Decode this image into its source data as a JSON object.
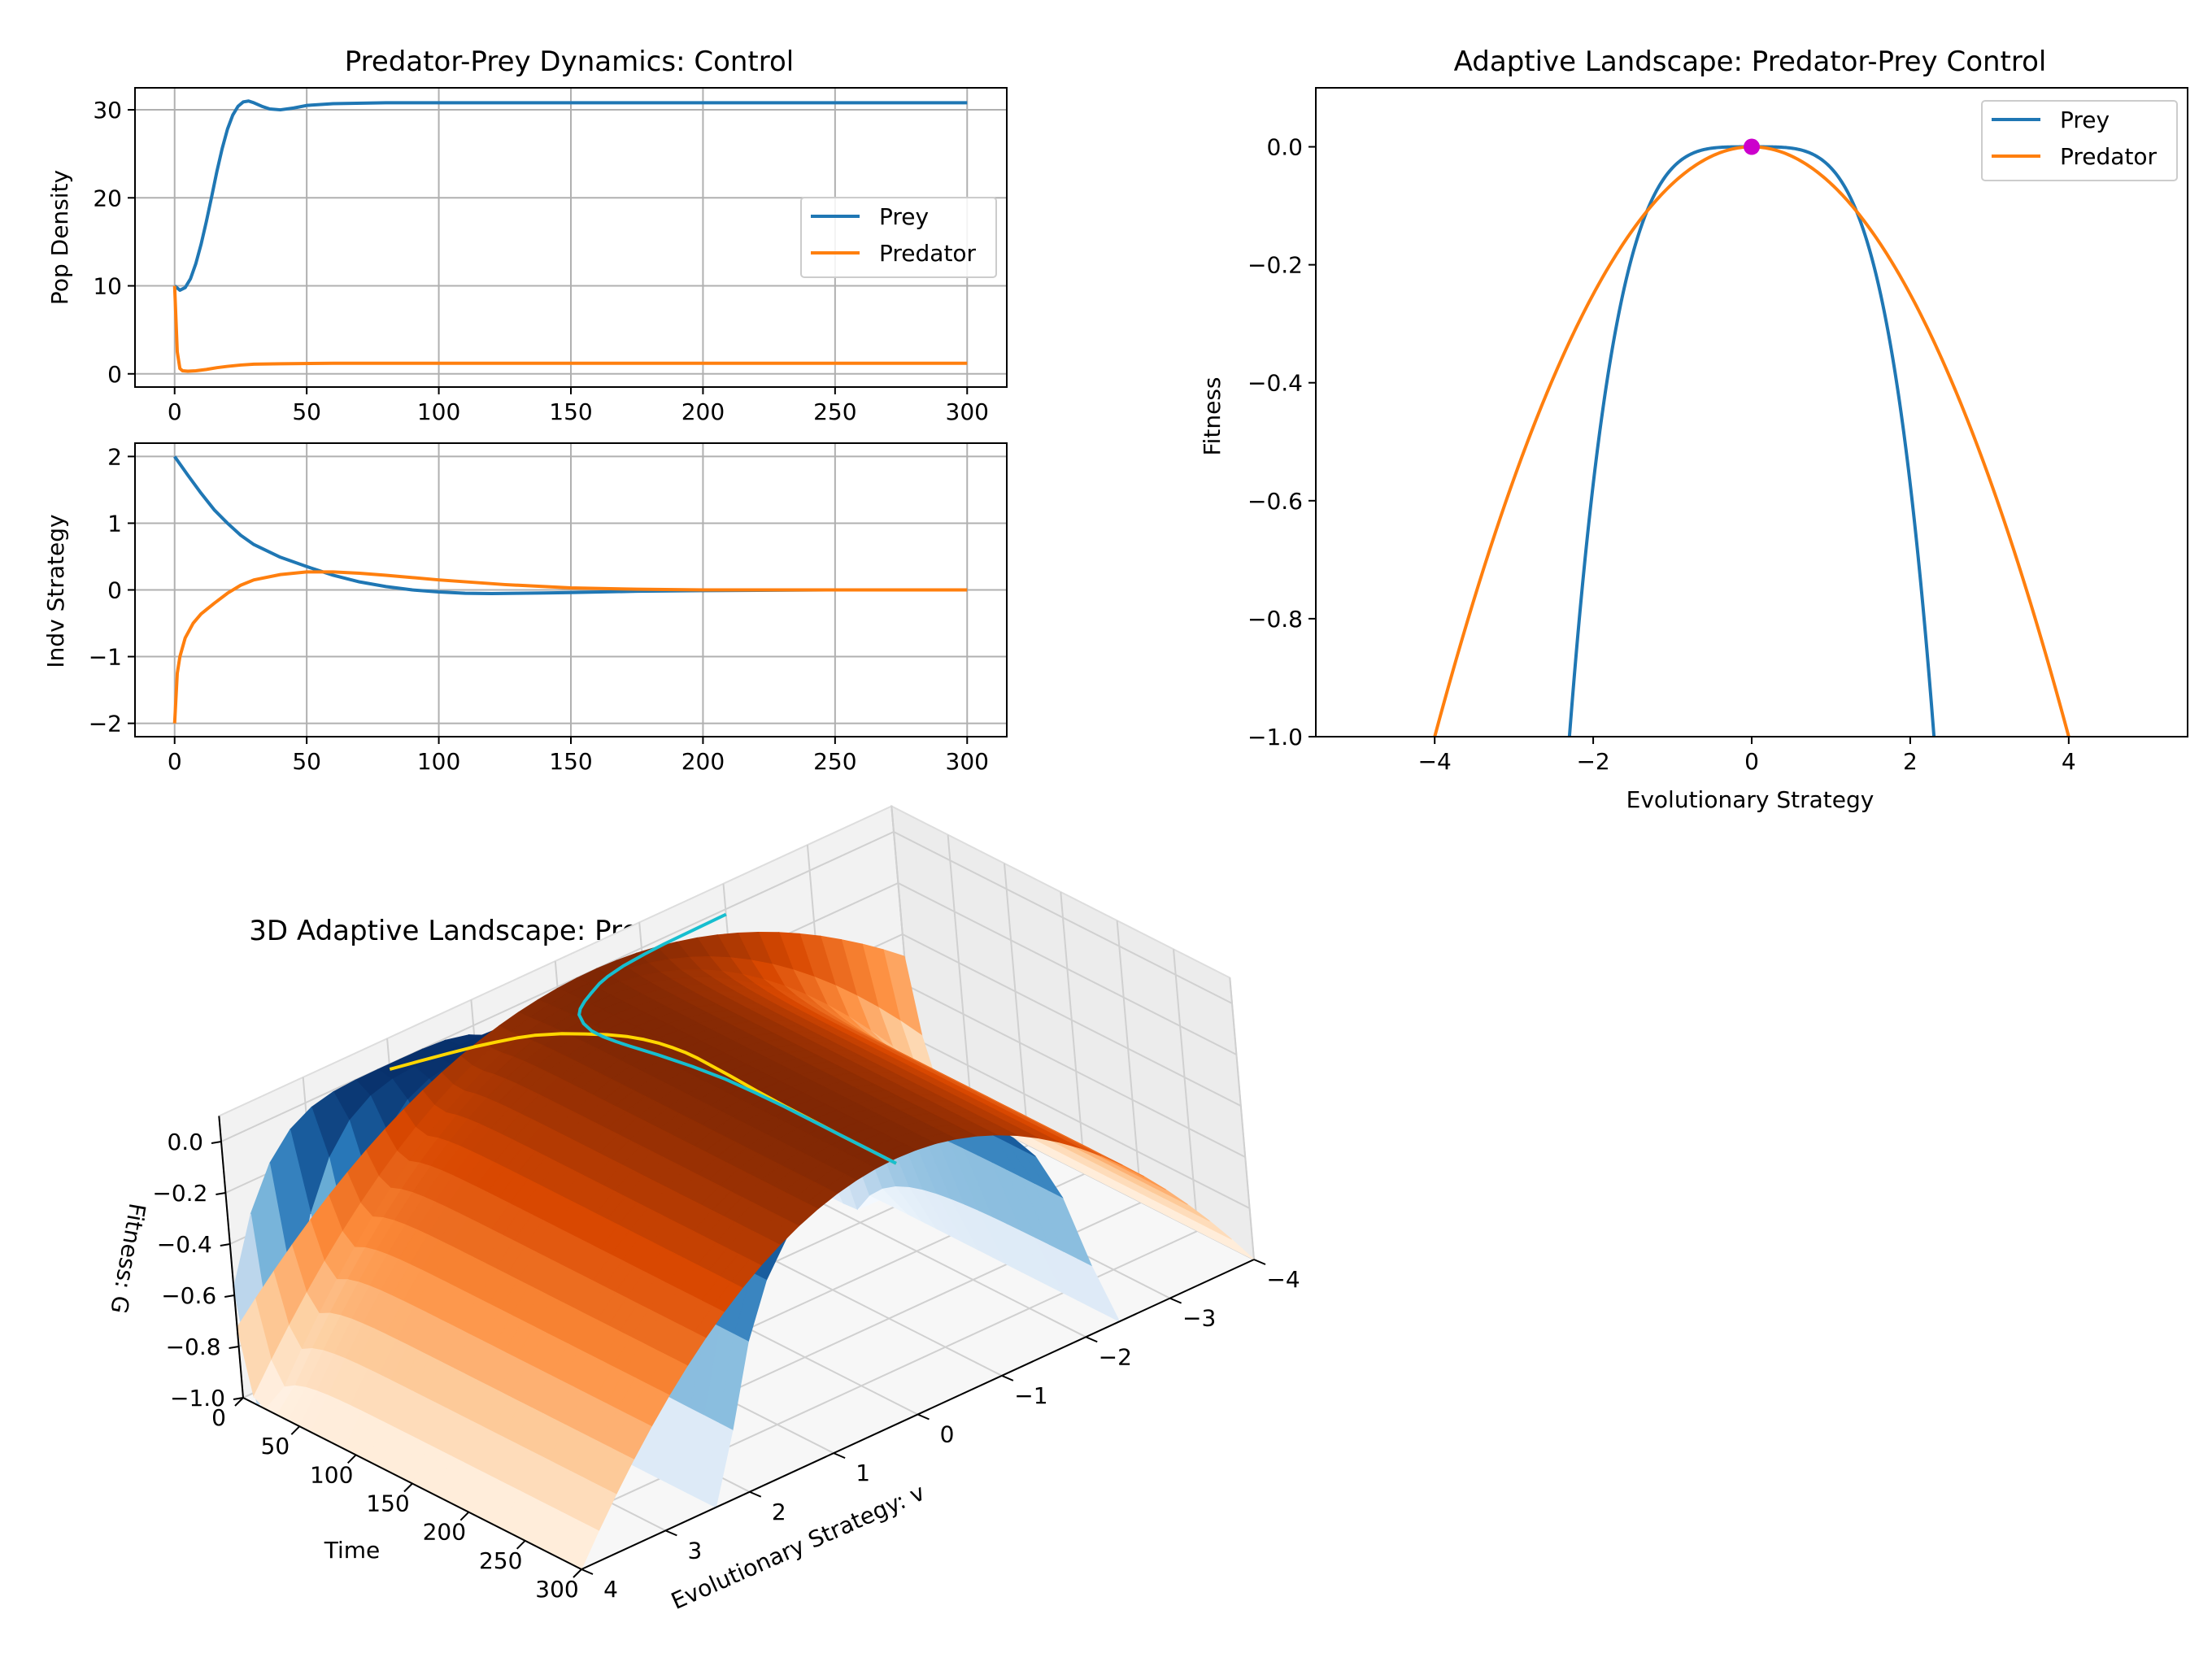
{
  "chart_data": [
    {
      "id": "dynamics-density",
      "type": "line",
      "title": "Predator-Prey Dynamics: Control",
      "xlabel": "",
      "ylabel": "Pop Density",
      "xlim": [
        -15,
        315
      ],
      "ylim": [
        -1.5,
        32.5
      ],
      "xticks": [
        0,
        50,
        100,
        150,
        200,
        250,
        300
      ],
      "yticks": [
        0,
        10,
        20,
        30
      ],
      "grid": true,
      "legend": "center-right",
      "series": [
        {
          "name": "Prey",
          "color": "#1f77b4",
          "x": [
            0,
            2,
            4,
            6,
            8,
            10,
            12,
            14,
            16,
            18,
            20,
            22,
            24,
            26,
            28,
            30,
            33,
            36,
            40,
            45,
            50,
            60,
            80,
            100,
            150,
            200,
            250,
            300
          ],
          "y": [
            10,
            9.5,
            9.8,
            10.8,
            12.5,
            14.7,
            17.3,
            20.1,
            23.0,
            25.6,
            27.8,
            29.4,
            30.4,
            30.9,
            31.0,
            30.8,
            30.4,
            30.1,
            30.0,
            30.2,
            30.5,
            30.7,
            30.8,
            30.8,
            30.8,
            30.8,
            30.8,
            30.8
          ]
        },
        {
          "name": "Predator",
          "color": "#ff7f0e",
          "x": [
            0,
            1,
            2,
            3,
            5,
            8,
            12,
            16,
            20,
            25,
            30,
            40,
            60,
            100,
            150,
            200,
            250,
            300
          ],
          "y": [
            10,
            2.5,
            0.6,
            0.35,
            0.3,
            0.35,
            0.5,
            0.7,
            0.85,
            1.0,
            1.1,
            1.15,
            1.2,
            1.2,
            1.2,
            1.2,
            1.2,
            1.2
          ]
        }
      ]
    },
    {
      "id": "dynamics-strategy",
      "type": "line",
      "title": "",
      "xlabel": "",
      "ylabel": "Indv Strategy",
      "xlim": [
        -15,
        315
      ],
      "ylim": [
        -2.2,
        2.2
      ],
      "xticks": [
        0,
        50,
        100,
        150,
        200,
        250,
        300
      ],
      "yticks": [
        -2,
        -1,
        0,
        1,
        2
      ],
      "grid": true,
      "series": [
        {
          "name": "Prey",
          "color": "#1f77b4",
          "x": [
            0,
            5,
            10,
            15,
            20,
            25,
            30,
            40,
            50,
            60,
            70,
            80,
            90,
            100,
            110,
            120,
            130,
            140,
            150,
            175,
            200,
            250,
            300
          ],
          "y": [
            2.0,
            1.72,
            1.45,
            1.2,
            1.0,
            0.82,
            0.68,
            0.49,
            0.35,
            0.22,
            0.12,
            0.05,
            0.0,
            -0.03,
            -0.05,
            -0.055,
            -0.05,
            -0.045,
            -0.04,
            -0.02,
            -0.01,
            0.0,
            0.0
          ]
        },
        {
          "name": "Predator",
          "color": "#ff7f0e",
          "x": [
            0,
            1,
            2,
            4,
            7,
            10,
            15,
            20,
            25,
            30,
            40,
            50,
            60,
            70,
            80,
            100,
            125,
            150,
            175,
            200,
            250,
            300
          ],
          "y": [
            -2.0,
            -1.25,
            -1.0,
            -0.72,
            -0.5,
            -0.36,
            -0.2,
            -0.05,
            0.07,
            0.15,
            0.23,
            0.27,
            0.27,
            0.25,
            0.22,
            0.15,
            0.08,
            0.03,
            0.01,
            0.0,
            0.0,
            0.0
          ]
        }
      ]
    },
    {
      "id": "adaptive-landscape",
      "type": "line",
      "title": "Adaptive Landscape: Predator-Prey Control",
      "xlabel": "Evolutionary Strategy",
      "ylabel": "Fitness",
      "xlim": [
        -5.5,
        5.5
      ],
      "ylim": [
        -1.0,
        0.1
      ],
      "xticks": [
        -4,
        -2,
        0,
        2,
        4
      ],
      "yticks": [
        -1.0,
        -0.8,
        -0.6,
        -0.4,
        -0.2,
        0.0
      ],
      "grid": false,
      "legend": "top-right",
      "series": [
        {
          "name": "Prey",
          "color": "#1f77b4",
          "formula": "-(v/2.3)^4",
          "vrange": [
            -2.3,
            2.3
          ]
        },
        {
          "name": "Predator",
          "color": "#ff7f0e",
          "formula": "-(v/4)^2",
          "vrange": [
            -4,
            4
          ]
        }
      ],
      "point": {
        "x": 0,
        "y": 0,
        "color": "#cc00cc"
      }
    },
    {
      "id": "landscape-3d",
      "type": "surface3d",
      "title": "3D Adaptive Landscape: Predator-Prey Control",
      "xlabel": "Evolutionary Strategy: v",
      "ylabel": "Time",
      "zlabel": "Fitness: G",
      "vticks": [
        -4,
        -3,
        -2,
        -1,
        0,
        1,
        2,
        3,
        4
      ],
      "tticks": [
        0,
        50,
        100,
        150,
        200,
        250,
        300
      ],
      "zticks": [
        -1.0,
        -0.8,
        -0.6,
        -0.4,
        -0.2,
        0.0
      ],
      "zlim": [
        -1.0,
        0.0
      ],
      "surfaces": [
        {
          "name": "Prey",
          "colormap": "Blues"
        },
        {
          "name": "Predator",
          "colormap": "Oranges"
        }
      ],
      "paths": [
        {
          "name": "Prey",
          "color": "#ffd700"
        },
        {
          "name": "Predator",
          "color": "#17becf"
        }
      ]
    }
  ]
}
